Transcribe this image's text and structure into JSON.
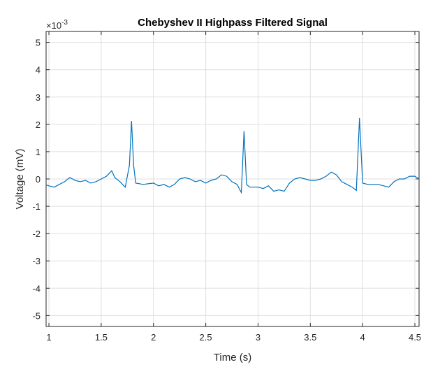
{
  "chart_data": {
    "type": "line",
    "title": "Chebyshev II Highpass Filtered Signal",
    "xlabel": "Time (s)",
    "ylabel": "Voltage (mV)",
    "y_exponent_label": "×10",
    "y_exponent": "-3",
    "xlim": [
      0.973,
      4.54
    ],
    "ylim": [
      -5.4,
      5.4
    ],
    "grid": true,
    "xticks": [
      1,
      1.5,
      2,
      2.5,
      3,
      3.5,
      4,
      4.5
    ],
    "xtick_labels": [
      "1",
      "1.5",
      "2",
      "2.5",
      "3",
      "3.5",
      "4",
      "4.5"
    ],
    "yticks": [
      5,
      4,
      3,
      2,
      1,
      0,
      -1,
      -2,
      -3,
      -4,
      -5
    ],
    "ytick_labels": [
      "5",
      "4",
      "3",
      "2",
      "1",
      "0",
      "-1",
      "-2",
      "-3",
      "-4",
      "-5"
    ],
    "series": [
      {
        "name": "filtered signal",
        "color": "#0072BD",
        "x": [
          0.973,
          1.0,
          1.05,
          1.1,
          1.15,
          1.2,
          1.25,
          1.3,
          1.35,
          1.4,
          1.45,
          1.5,
          1.55,
          1.6,
          1.63,
          1.68,
          1.73,
          1.77,
          1.79,
          1.81,
          1.83,
          1.9,
          2.0,
          2.05,
          2.1,
          2.15,
          2.2,
          2.25,
          2.3,
          2.35,
          2.4,
          2.45,
          2.5,
          2.55,
          2.6,
          2.65,
          2.7,
          2.75,
          2.8,
          2.84,
          2.866,
          2.89,
          2.92,
          3.0,
          3.05,
          3.1,
          3.15,
          3.2,
          3.25,
          3.3,
          3.35,
          3.4,
          3.45,
          3.5,
          3.55,
          3.6,
          3.65,
          3.7,
          3.75,
          3.8,
          3.85,
          3.9,
          3.94,
          3.97,
          4.0,
          4.05,
          4.1,
          4.15,
          4.2,
          4.25,
          4.3,
          4.35,
          4.4,
          4.45,
          4.5,
          4.54
        ],
        "y": [
          -0.22,
          -0.25,
          -0.3,
          -0.2,
          -0.1,
          0.05,
          -0.05,
          -0.1,
          -0.05,
          -0.15,
          -0.1,
          0.0,
          0.1,
          0.3,
          0.05,
          -0.1,
          -0.3,
          0.5,
          2.12,
          0.5,
          -0.15,
          -0.2,
          -0.15,
          -0.25,
          -0.2,
          -0.3,
          -0.2,
          0.0,
          0.05,
          0.0,
          -0.1,
          -0.05,
          -0.15,
          -0.05,
          0.0,
          0.15,
          0.1,
          -0.1,
          -0.2,
          -0.5,
          1.75,
          -0.2,
          -0.3,
          -0.3,
          -0.35,
          -0.25,
          -0.45,
          -0.4,
          -0.45,
          -0.15,
          0.0,
          0.05,
          0.0,
          -0.05,
          -0.05,
          0.0,
          0.1,
          0.25,
          0.15,
          -0.1,
          -0.2,
          -0.3,
          -0.42,
          2.23,
          -0.15,
          -0.2,
          -0.2,
          -0.2,
          -0.25,
          -0.3,
          -0.1,
          0.0,
          0.0,
          0.1,
          0.1,
          0.0
        ]
      }
    ]
  }
}
